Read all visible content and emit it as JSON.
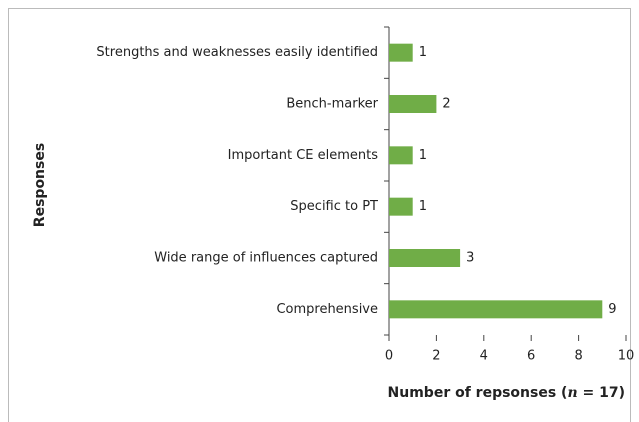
{
  "chart_data": {
    "type": "barh",
    "categories": [
      "Strengths and weaknesses easily identified",
      "Bench-marker",
      "Important CE elements",
      "Specific to PT",
      "Wide range of influences captured",
      "Comprehensive"
    ],
    "values": [
      1,
      2,
      1,
      1,
      3,
      9
    ],
    "color": "#70ad47",
    "xlim": [
      0,
      10
    ],
    "xticks": [
      0,
      2,
      4,
      6,
      8,
      10
    ],
    "xlabel_parts": [
      "Number of repsonses (",
      "n",
      " = 17)"
    ],
    "ylabel": "Responses",
    "grid": false
  }
}
